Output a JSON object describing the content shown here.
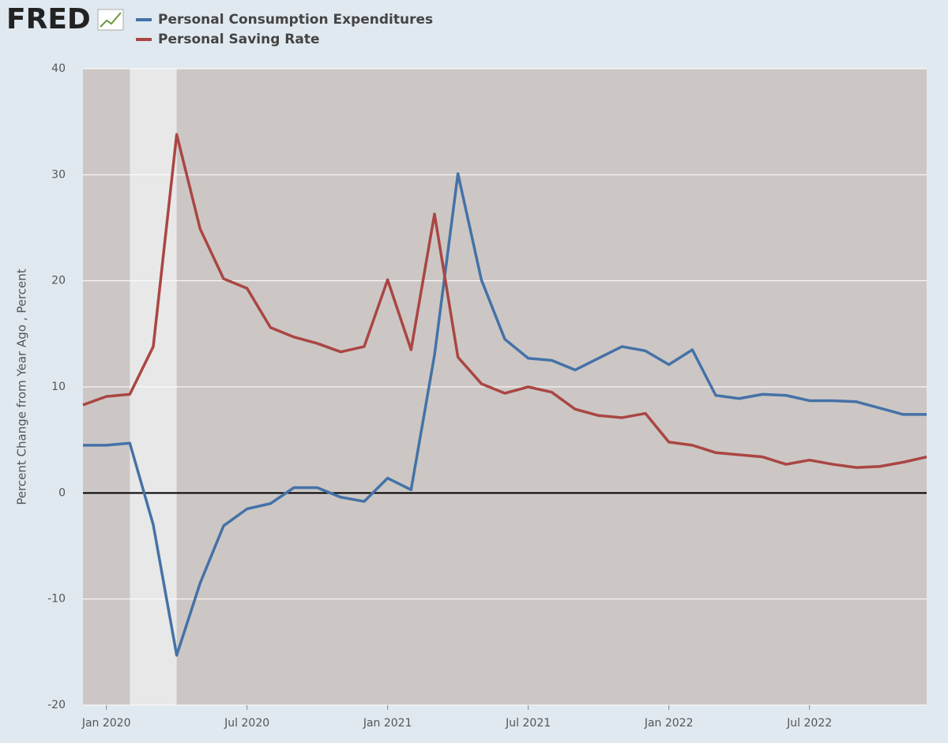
{
  "chart_data": {
    "type": "line",
    "logo": "FRED",
    "y_label": "Percent Change from Year Ago , Percent",
    "categories": [
      null,
      "Jan 2020",
      null,
      null,
      null,
      null,
      null,
      "Jul 2020",
      null,
      null,
      null,
      null,
      null,
      "Jan 2021",
      null,
      null,
      null,
      null,
      null,
      "Jul 2021",
      null,
      null,
      null,
      null,
      null,
      "Jan 2022",
      null,
      null,
      null,
      null,
      null,
      "Jul 2022",
      null,
      null,
      null,
      null,
      null
    ],
    "series": [
      {
        "name": "Personal Consumption Expenditures",
        "color": "#4572a7",
        "values": [
          4.5,
          4.5,
          4.7,
          -3.0,
          -15.3,
          -8.5,
          -3.1,
          -1.5,
          -1.0,
          0.5,
          0.5,
          -0.4,
          -0.8,
          1.4,
          0.3,
          13.0,
          30.1,
          20.1,
          14.5,
          12.7,
          12.5,
          11.6,
          12.7,
          13.8,
          13.4,
          12.1,
          13.5,
          9.2,
          8.9,
          9.3,
          9.2,
          8.7,
          8.7,
          8.6,
          8.0,
          7.4,
          7.4
        ]
      },
      {
        "name": "Personal Saving Rate",
        "color": "#aa4643",
        "values": [
          8.3,
          9.1,
          9.3,
          13.8,
          33.8,
          24.9,
          20.2,
          19.3,
          15.6,
          14.7,
          14.1,
          13.3,
          13.8,
          20.1,
          13.5,
          26.3,
          12.8,
          10.3,
          9.4,
          10.0,
          9.5,
          7.9,
          7.3,
          7.1,
          7.5,
          4.8,
          4.5,
          3.8,
          3.6,
          3.4,
          2.7,
          3.1,
          2.7,
          2.4,
          2.5,
          2.9,
          3.4
        ]
      }
    ],
    "shaded_region": [
      2,
      4
    ],
    "ylim": [
      -20,
      40
    ],
    "yticks": [
      -20,
      -10,
      0,
      10,
      20,
      30,
      40
    ],
    "grid": true,
    "legend": "top"
  }
}
